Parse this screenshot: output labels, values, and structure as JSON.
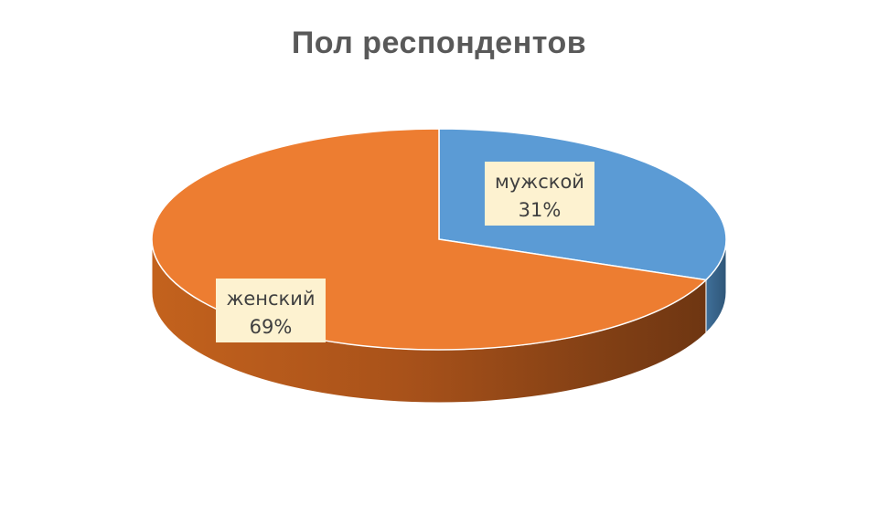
{
  "chart_data": {
    "type": "pie",
    "title": "Пол респондентов",
    "slices": [
      {
        "category": "мужской",
        "percent_label": "31%",
        "value": 31,
        "color": "#5b9bd5"
      },
      {
        "category": "женский",
        "percent_label": "69%",
        "value": 69,
        "color": "#ed7d31"
      }
    ],
    "style": "3d",
    "legend": "none"
  }
}
